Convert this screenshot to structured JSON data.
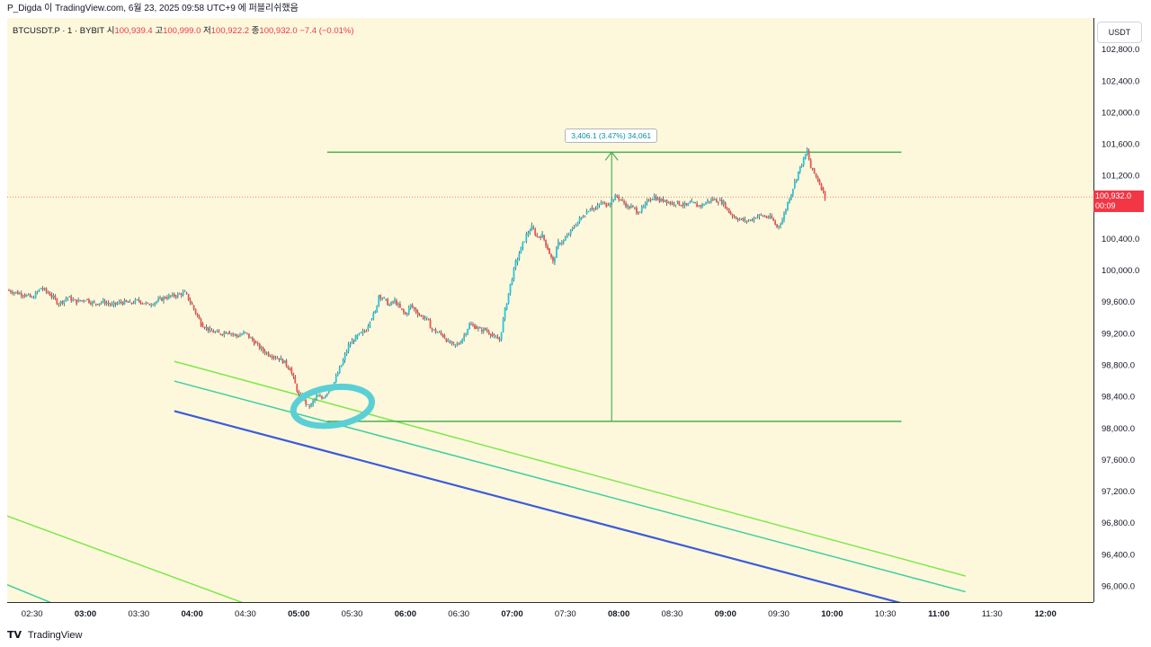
{
  "header": {
    "text": "P_Digda 이 TradingView.com, 6월 23, 2025 09:58 UTC+9 에 퍼블리쉬했음"
  },
  "legend": {
    "symbol": "BTCUSDT.P · 1 · BYBIT",
    "open_label": "시",
    "open": "100,939.4",
    "high_label": "고",
    "high": "100,999.0",
    "low_label": "저",
    "low": "100,922.2",
    "close_label": "종",
    "close": "100,932.0",
    "change": "−7.4 (−0.01%)"
  },
  "currency_button": "USDT",
  "last_price": {
    "value": "100,932.0",
    "countdown": "00:09",
    "color": "#f23645"
  },
  "measure_label": "3,406.1 (3.47%) 34,061",
  "footer": {
    "brand": "TradingView"
  },
  "colors": {
    "up": "#26c6da",
    "down": "#ef5350",
    "wick": "#131722",
    "hline": "#4caf50",
    "channel_top": "#7ee84c",
    "channel_mid": "#3ecf9f",
    "channel_bottom": "#3b5bdb",
    "circle": "#5ad0d6",
    "background": "#fdf8dc"
  },
  "chart_data": {
    "type": "candlestick",
    "y_ticks": [
      "102,800.0",
      "102,400.0",
      "102,000.0",
      "101,600.0",
      "101,200.0",
      "100,400.0",
      "100,000.0",
      "99,600.0",
      "99,200.0",
      "98,800.0",
      "98,400.0",
      "98,000.0",
      "97,600.0",
      "97,200.0",
      "96,800.0",
      "96,400.0",
      "96,000.0"
    ],
    "y_tick_values": [
      102800,
      102400,
      102000,
      101600,
      101200,
      100400,
      100000,
      99600,
      99200,
      98800,
      98400,
      98000,
      97600,
      97200,
      96800,
      96400,
      96000
    ],
    "x_ticks": [
      "02:30",
      "03:00",
      "03:30",
      "04:00",
      "04:30",
      "05:00",
      "05:30",
      "06:00",
      "06:30",
      "07:00",
      "07:30",
      "08:00",
      "08:30",
      "09:00",
      "09:30",
      "10:00",
      "10:30",
      "11:00",
      "11:30",
      "12:00"
    ],
    "x_tick_minutes": [
      150,
      180,
      210,
      240,
      270,
      300,
      330,
      360,
      390,
      420,
      450,
      480,
      510,
      540,
      570,
      600,
      630,
      660,
      690,
      720
    ],
    "ylim": [
      95800,
      103200
    ],
    "xlim": [
      136,
      747
    ],
    "price_path": [
      [
        136,
        99750
      ],
      [
        145,
        99700
      ],
      [
        150,
        99650
      ],
      [
        155,
        99780
      ],
      [
        160,
        99700
      ],
      [
        165,
        99580
      ],
      [
        170,
        99660
      ],
      [
        175,
        99600
      ],
      [
        180,
        99640
      ],
      [
        185,
        99580
      ],
      [
        190,
        99610
      ],
      [
        195,
        99560
      ],
      [
        200,
        99600
      ],
      [
        205,
        99590
      ],
      [
        210,
        99620
      ],
      [
        215,
        99570
      ],
      [
        220,
        99610
      ],
      [
        225,
        99660
      ],
      [
        230,
        99680
      ],
      [
        236,
        99720
      ],
      [
        240,
        99560
      ],
      [
        245,
        99330
      ],
      [
        250,
        99240
      ],
      [
        255,
        99200
      ],
      [
        260,
        99230
      ],
      [
        265,
        99170
      ],
      [
        270,
        99210
      ],
      [
        275,
        99090
      ],
      [
        280,
        98980
      ],
      [
        285,
        98920
      ],
      [
        290,
        98880
      ],
      [
        295,
        98760
      ],
      [
        298,
        98560
      ],
      [
        300,
        98420
      ],
      [
        303,
        98360
      ],
      [
        305,
        98280
      ],
      [
        307,
        98300
      ],
      [
        310,
        98410
      ],
      [
        313,
        98380
      ],
      [
        316,
        98460
      ],
      [
        319,
        98530
      ],
      [
        322,
        98700
      ],
      [
        325,
        98860
      ],
      [
        328,
        99050
      ],
      [
        332,
        99150
      ],
      [
        335,
        99200
      ],
      [
        338,
        99250
      ],
      [
        340,
        99380
      ],
      [
        343,
        99470
      ],
      [
        345,
        99690
      ],
      [
        348,
        99640
      ],
      [
        351,
        99560
      ],
      [
        354,
        99620
      ],
      [
        357,
        99520
      ],
      [
        360,
        99440
      ],
      [
        363,
        99560
      ],
      [
        366,
        99480
      ],
      [
        369,
        99420
      ],
      [
        372,
        99390
      ],
      [
        375,
        99250
      ],
      [
        378,
        99220
      ],
      [
        381,
        99180
      ],
      [
        384,
        99100
      ],
      [
        387,
        99050
      ],
      [
        390,
        99070
      ],
      [
        393,
        99180
      ],
      [
        396,
        99320
      ],
      [
        399,
        99290
      ],
      [
        402,
        99250
      ],
      [
        405,
        99250
      ],
      [
        408,
        99200
      ],
      [
        410,
        99150
      ],
      [
        413,
        99120
      ],
      [
        416,
        99500
      ],
      [
        419,
        99820
      ],
      [
        422,
        100100
      ],
      [
        425,
        100280
      ],
      [
        428,
        100450
      ],
      [
        431,
        100550
      ],
      [
        434,
        100430
      ],
      [
        437,
        100450
      ],
      [
        440,
        100280
      ],
      [
        443,
        100100
      ],
      [
        446,
        100350
      ],
      [
        449,
        100380
      ],
      [
        452,
        100460
      ],
      [
        455,
        100560
      ],
      [
        458,
        100650
      ],
      [
        461,
        100720
      ],
      [
        464,
        100800
      ],
      [
        467,
        100780
      ],
      [
        470,
        100860
      ],
      [
        473,
        100830
      ],
      [
        476,
        100900
      ],
      [
        479,
        100940
      ],
      [
        482,
        100880
      ],
      [
        485,
        100810
      ],
      [
        488,
        100800
      ],
      [
        491,
        100740
      ],
      [
        494,
        100800
      ],
      [
        497,
        100900
      ],
      [
        500,
        100940
      ],
      [
        503,
        100880
      ],
      [
        506,
        100900
      ],
      [
        509,
        100850
      ],
      [
        512,
        100860
      ],
      [
        515,
        100840
      ],
      [
        518,
        100820
      ],
      [
        521,
        100860
      ],
      [
        524,
        100820
      ],
      [
        527,
        100830
      ],
      [
        530,
        100880
      ],
      [
        533,
        100900
      ],
      [
        536,
        100880
      ],
      [
        539,
        100860
      ],
      [
        542,
        100740
      ],
      [
        545,
        100680
      ],
      [
        548,
        100650
      ],
      [
        551,
        100630
      ],
      [
        554,
        100640
      ],
      [
        557,
        100680
      ],
      [
        560,
        100700
      ],
      [
        563,
        100680
      ],
      [
        566,
        100660
      ],
      [
        569,
        100550
      ],
      [
        572,
        100640
      ],
      [
        575,
        100860
      ],
      [
        578,
        101050
      ],
      [
        581,
        101250
      ],
      [
        584,
        101410
      ],
      [
        586,
        101520
      ],
      [
        588,
        101300
      ],
      [
        590,
        101230
      ],
      [
        592,
        101150
      ],
      [
        594,
        101050
      ],
      [
        596,
        100932
      ]
    ],
    "measure": {
      "low": 98090,
      "high": 101500,
      "x_start": 316,
      "x_end": 639,
      "x_arrow": 476
    },
    "channel_lines": [
      {
        "name": "upper",
        "x1": 230,
        "y1": 98850,
        "x2": 675,
        "y2": 96130
      },
      {
        "name": "mid",
        "x1": 230,
        "y1": 98600,
        "x2": 675,
        "y2": 95930
      },
      {
        "name": "lower",
        "x1": 230,
        "y1": 98220,
        "x2": 640,
        "y2": 95780
      },
      {
        "name": "far-upper",
        "x1": 136,
        "y1": 96890,
        "x2": 270,
        "y2": 95780
      },
      {
        "name": "far-lower",
        "x1": 136,
        "y1": 96020,
        "x2": 162,
        "y2": 95780
      }
    ],
    "circle_center": {
      "x": 316,
      "y": 98280
    }
  }
}
